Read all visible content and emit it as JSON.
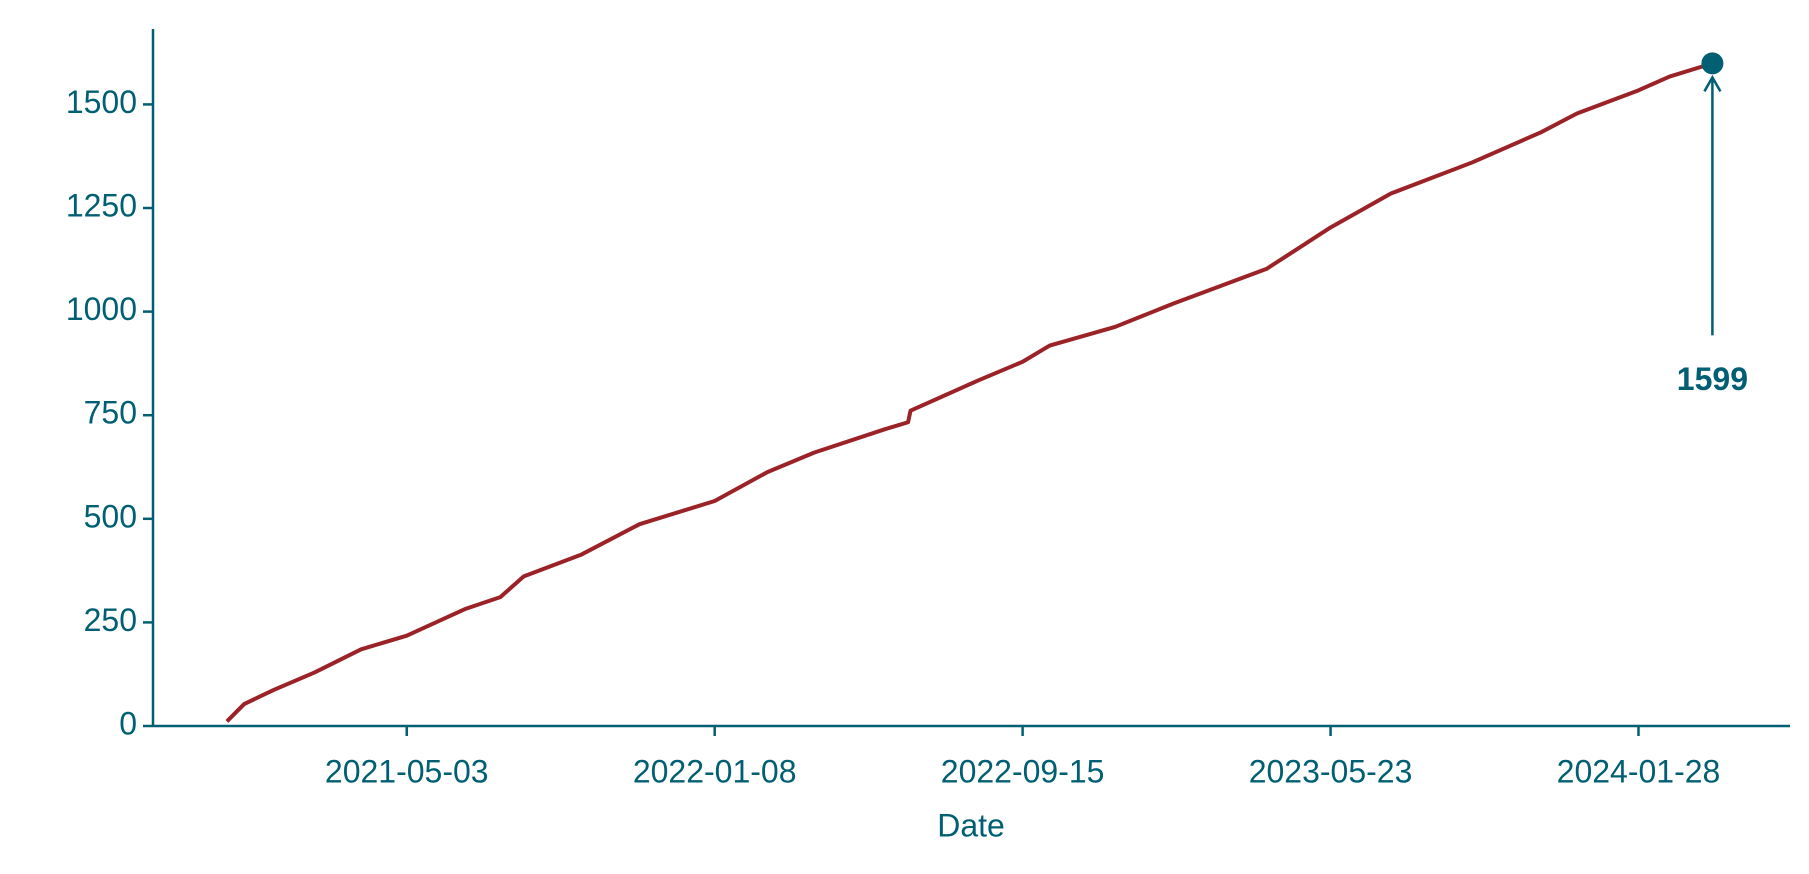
{
  "chart_data": {
    "type": "line",
    "x_label": "Date",
    "x": [
      "2020-12-08",
      "2020-12-22",
      "2021-01-15",
      "2021-02-17",
      "2021-03-27",
      "2021-05-03",
      "2021-06-20",
      "2021-07-18",
      "2021-08-06",
      "2021-09-22",
      "2021-11-08",
      "2022-01-08",
      "2022-02-20",
      "2022-03-30",
      "2022-05-26",
      "2022-06-14",
      "2022-06-16",
      "2022-08-10",
      "2022-09-15",
      "2022-10-07",
      "2022-11-29",
      "2023-01-15",
      "2023-04-01",
      "2023-05-23",
      "2023-07-11",
      "2023-09-15",
      "2023-11-10",
      "2023-12-09",
      "2024-01-28",
      "2024-02-22",
      "2024-03-28"
    ],
    "series": [
      {
        "color": "#9b2226",
        "values": [
          11,
          53,
          87,
          129,
          185,
          218,
          283,
          311,
          361,
          414,
          487,
          543,
          613,
          660,
          716,
          733,
          761,
          834,
          879,
          918,
          963,
          1019,
          1103,
          1203,
          1285,
          1360,
          1433,
          1478,
          1534,
          1567,
          1599
        ]
      }
    ],
    "xlim": [
      "2020-10-09",
      "2024-05-30"
    ],
    "xticks": [
      "2021-05-03",
      "2022-01-08",
      "2022-09-15",
      "2023-05-23",
      "2024-01-28"
    ],
    "ylim": [
      0,
      1682
    ],
    "yticks": [
      0,
      250,
      500,
      750,
      1000,
      1250,
      1500
    ],
    "grid": false,
    "axis_color": "#005f73",
    "annotation": {
      "value": 1599
    }
  }
}
